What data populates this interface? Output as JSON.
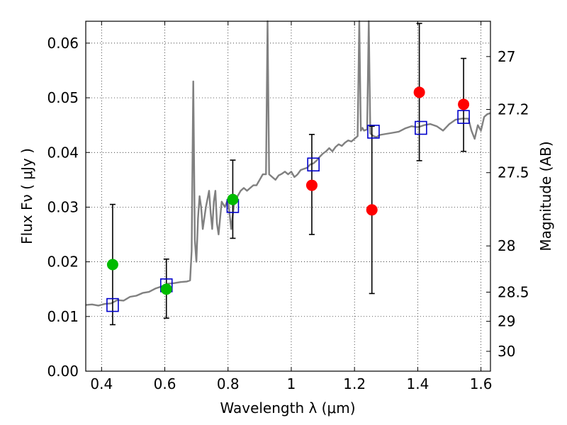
{
  "chart_data": {
    "type": "scatter",
    "title": "",
    "xlabel": "Wavelength  λ (μm)",
    "ylabel": "Flux  Fν  ( μJy )",
    "y2label": "Magnitude (AB)",
    "xlim": [
      0.35,
      1.63
    ],
    "ylim": [
      0.0,
      0.064
    ],
    "grid": true,
    "x_ticks": [
      {
        "value": 0.4,
        "label": "0.4"
      },
      {
        "value": 0.6,
        "label": "0.6"
      },
      {
        "value": 0.8,
        "label": "0.8"
      },
      {
        "value": 1.0,
        "label": "1"
      },
      {
        "value": 1.2,
        "label": "1.2"
      },
      {
        "value": 1.4,
        "label": "1.4"
      },
      {
        "value": 1.6,
        "label": "1.6"
      }
    ],
    "y_ticks": [
      {
        "value": 0.0,
        "label": "0.00"
      },
      {
        "value": 0.01,
        "label": "0.01"
      },
      {
        "value": 0.02,
        "label": "0.02"
      },
      {
        "value": 0.03,
        "label": "0.03"
      },
      {
        "value": 0.04,
        "label": "0.04"
      },
      {
        "value": 0.05,
        "label": "0.05"
      },
      {
        "value": 0.06,
        "label": "0.06"
      }
    ],
    "y2_ticks": [
      {
        "value": 27,
        "label": "27"
      },
      {
        "value": 27.2,
        "label": "27.2"
      },
      {
        "value": 27.5,
        "label": "27.5"
      },
      {
        "value": 28,
        "label": "28"
      },
      {
        "value": 28.5,
        "label": "28.5"
      },
      {
        "value": 29,
        "label": "29"
      },
      {
        "value": 30,
        "label": "30"
      }
    ],
    "series": [
      {
        "type": "line",
        "color": "#808080",
        "points": [
          [
            0.35,
            0.0121
          ],
          [
            0.37,
            0.0122
          ],
          [
            0.39,
            0.012
          ],
          [
            0.41,
            0.0123
          ],
          [
            0.43,
            0.0124
          ],
          [
            0.45,
            0.013
          ],
          [
            0.47,
            0.0129
          ],
          [
            0.49,
            0.0136
          ],
          [
            0.51,
            0.0138
          ],
          [
            0.53,
            0.0143
          ],
          [
            0.55,
            0.0145
          ],
          [
            0.57,
            0.0151
          ],
          [
            0.59,
            0.0155
          ],
          [
            0.61,
            0.016
          ],
          [
            0.63,
            0.0161
          ],
          [
            0.65,
            0.0163
          ],
          [
            0.67,
            0.0164
          ],
          [
            0.68,
            0.0166
          ],
          [
            0.685,
            0.022
          ],
          [
            0.69,
            0.053
          ],
          [
            0.695,
            0.024
          ],
          [
            0.7,
            0.02
          ],
          [
            0.705,
            0.028
          ],
          [
            0.71,
            0.032
          ],
          [
            0.715,
            0.03
          ],
          [
            0.72,
            0.026
          ],
          [
            0.73,
            0.03
          ],
          [
            0.74,
            0.033
          ],
          [
            0.745,
            0.029
          ],
          [
            0.75,
            0.026
          ],
          [
            0.755,
            0.031
          ],
          [
            0.76,
            0.033
          ],
          [
            0.765,
            0.027
          ],
          [
            0.77,
            0.025
          ],
          [
            0.78,
            0.031
          ],
          [
            0.79,
            0.03
          ],
          [
            0.8,
            0.0315
          ],
          [
            0.81,
            0.026
          ],
          [
            0.82,
            0.031
          ],
          [
            0.83,
            0.032
          ],
          [
            0.84,
            0.033
          ],
          [
            0.85,
            0.0335
          ],
          [
            0.86,
            0.033
          ],
          [
            0.87,
            0.0335
          ],
          [
            0.88,
            0.034
          ],
          [
            0.89,
            0.034
          ],
          [
            0.9,
            0.035
          ],
          [
            0.91,
            0.036
          ],
          [
            0.92,
            0.036
          ],
          [
            0.925,
            0.064
          ],
          [
            0.93,
            0.036
          ],
          [
            0.94,
            0.0355
          ],
          [
            0.95,
            0.035
          ],
          [
            0.96,
            0.0358
          ],
          [
            0.97,
            0.0361
          ],
          [
            0.98,
            0.0365
          ],
          [
            0.99,
            0.036
          ],
          [
            1.0,
            0.0365
          ],
          [
            1.01,
            0.0355
          ],
          [
            1.02,
            0.036
          ],
          [
            1.03,
            0.0368
          ],
          [
            1.04,
            0.037
          ],
          [
            1.05,
            0.0372
          ],
          [
            1.06,
            0.0378
          ],
          [
            1.07,
            0.038
          ],
          [
            1.08,
            0.0385
          ],
          [
            1.09,
            0.0392
          ],
          [
            1.1,
            0.0398
          ],
          [
            1.11,
            0.0402
          ],
          [
            1.12,
            0.0408
          ],
          [
            1.13,
            0.0402
          ],
          [
            1.14,
            0.041
          ],
          [
            1.15,
            0.0415
          ],
          [
            1.16,
            0.0412
          ],
          [
            1.17,
            0.0418
          ],
          [
            1.18,
            0.0422
          ],
          [
            1.19,
            0.042
          ],
          [
            1.2,
            0.0425
          ],
          [
            1.21,
            0.043
          ],
          [
            1.215,
            0.064
          ],
          [
            1.22,
            0.044
          ],
          [
            1.225,
            0.0445
          ],
          [
            1.23,
            0.044
          ],
          [
            1.24,
            0.0442
          ],
          [
            1.245,
            0.064
          ],
          [
            1.25,
            0.0435
          ],
          [
            1.26,
            0.043
          ],
          [
            1.27,
            0.0428
          ],
          [
            1.28,
            0.0432
          ],
          [
            1.3,
            0.0434
          ],
          [
            1.32,
            0.0436
          ],
          [
            1.34,
            0.0438
          ],
          [
            1.36,
            0.0444
          ],
          [
            1.38,
            0.0448
          ],
          [
            1.4,
            0.0446
          ],
          [
            1.42,
            0.045
          ],
          [
            1.44,
            0.0452
          ],
          [
            1.46,
            0.0448
          ],
          [
            1.48,
            0.044
          ],
          [
            1.5,
            0.0452
          ],
          [
            1.52,
            0.046
          ],
          [
            1.54,
            0.0462
          ],
          [
            1.56,
            0.0462
          ],
          [
            1.57,
            0.044
          ],
          [
            1.58,
            0.0425
          ],
          [
            1.59,
            0.045
          ],
          [
            1.6,
            0.044
          ],
          [
            1.61,
            0.0465
          ],
          [
            1.62,
            0.047
          ],
          [
            1.63,
            0.0472
          ]
        ]
      },
      {
        "type": "scatter",
        "marker": "square-open",
        "color": "#0000cc",
        "points": [
          [
            0.435,
            0.0121
          ],
          [
            0.605,
            0.0157
          ],
          [
            0.815,
            0.0302
          ],
          [
            1.07,
            0.0378
          ],
          [
            1.26,
            0.0438
          ],
          [
            1.41,
            0.0445
          ],
          [
            1.545,
            0.0465
          ]
        ]
      },
      {
        "type": "scatter",
        "marker": "circle",
        "color": "#00bb00",
        "points": [
          [
            0.435,
            0.0195
          ],
          [
            0.605,
            0.015
          ],
          [
            0.815,
            0.0314
          ]
        ]
      },
      {
        "type": "scatter",
        "marker": "circle",
        "color": "#ff0000",
        "points": [
          [
            1.065,
            0.034
          ],
          [
            1.255,
            0.0295
          ],
          [
            1.405,
            0.051
          ],
          [
            1.545,
            0.0488
          ]
        ]
      }
    ],
    "errorbars": [
      {
        "x": 0.435,
        "low": 0.0085,
        "high": 0.0305
      },
      {
        "x": 0.605,
        "low": 0.0097,
        "high": 0.0205
      },
      {
        "x": 0.815,
        "low": 0.0243,
        "high": 0.0386
      },
      {
        "x": 1.065,
        "low": 0.025,
        "high": 0.0433
      },
      {
        "x": 1.255,
        "low": 0.0142,
        "high": 0.0448
      },
      {
        "x": 1.405,
        "low": 0.0385,
        "high": 0.0636
      },
      {
        "x": 1.545,
        "low": 0.0402,
        "high": 0.0572
      }
    ]
  }
}
